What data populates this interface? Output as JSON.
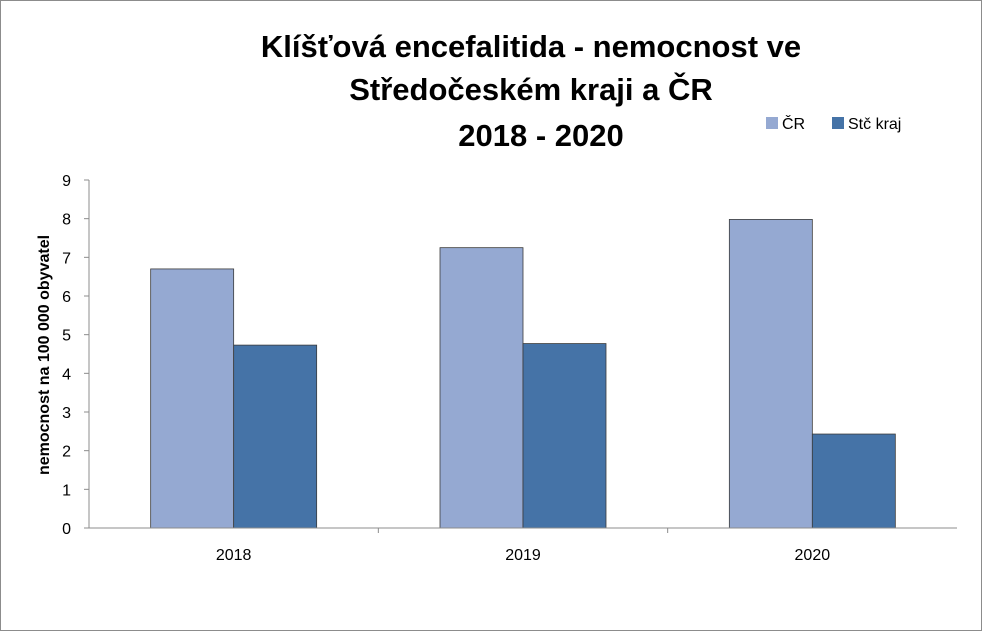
{
  "chart_data": {
    "type": "bar",
    "title_lines": [
      "Klíšťová encefalitida - nemocnost ve",
      "Středočeském kraji a ČR",
      "2018 - 2020"
    ],
    "xlabel": "",
    "ylabel": "nemocnost na 100 000 obyvatel",
    "categories": [
      "2018",
      "2019",
      "2020"
    ],
    "series": [
      {
        "name": "ČR",
        "values": [
          6.7,
          7.25,
          7.98
        ],
        "color": "#95a9d2"
      },
      {
        "name": "Stč kraj",
        "values": [
          4.73,
          4.77,
          2.43
        ],
        "color": "#4573a7"
      }
    ],
    "ylim": [
      0,
      9
    ],
    "yticks": [
      "0",
      "1",
      "2",
      "3",
      "4",
      "5",
      "6",
      "7",
      "8",
      "9"
    ],
    "grid": false,
    "legend_position": "top-right"
  }
}
